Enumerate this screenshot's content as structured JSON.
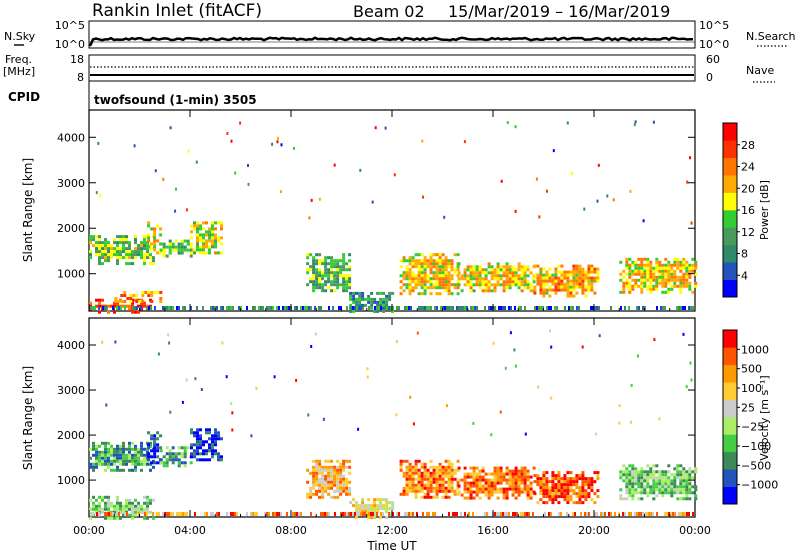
{
  "header": {
    "title": "Rankin Inlet (fitACF)",
    "beam": "Beam 02",
    "date_range": "15/Mar/2019 – 16/Mar/2019"
  },
  "aux_panels": {
    "nsky_label": "N.Sky",
    "nsky_ticks": [
      "10^5",
      "10^0"
    ],
    "nsearch_label": "N.Search",
    "nsearch_ticks": [
      "10^5",
      "10^0"
    ],
    "freq_label_1": "Freq.",
    "freq_label_2": "[MHz]",
    "freq_ticks": [
      "18",
      "8"
    ],
    "nave_label": "Nave",
    "nave_ticks": [
      "60",
      "0"
    ],
    "cpid_label": "CPID",
    "cpid_value": "twofsound (1-min) 3505"
  },
  "colors": {
    "power_scale": [
      "#0000ff",
      "#2255bb",
      "#2f8a6a",
      "#4a9a5e",
      "#33cc33",
      "#ffff00",
      "#ffaa00",
      "#ff7700",
      "#ff3300",
      "#ff0000"
    ],
    "velocity_scale": [
      "#ff0000",
      "#ff5500",
      "#ff9900",
      "#ffcc33",
      "#cccccc",
      "#aaee66",
      "#44cc44",
      "#3a8a5a",
      "#2255bb",
      "#0000ff"
    ]
  },
  "chart_data": [
    {
      "type": "heatmap",
      "panel": "power",
      "ylabel": "Slant Range [km]",
      "y_ticks": [
        1000,
        2000,
        3000,
        4000
      ],
      "ylim": [
        180,
        4600
      ],
      "x_ticks": [
        "00:00",
        "04:00",
        "08:00",
        "12:00",
        "16:00",
        "20:00",
        "00:00"
      ],
      "xlim_hours": [
        0,
        24
      ],
      "colorbar": {
        "label": "Power [dB]",
        "ticks": [
          "4",
          "8",
          "12",
          "16",
          "20",
          "24",
          "28"
        ],
        "range": [
          0,
          30
        ]
      },
      "regions": [
        {
          "t": [
            0.0,
            2.6
          ],
          "r": [
            1200,
            1850
          ],
          "level": 0.45
        },
        {
          "t": [
            2.3,
            2.8
          ],
          "r": [
            1450,
            2150
          ],
          "level": 0.55
        },
        {
          "t": [
            2.8,
            4.0
          ],
          "r": [
            1400,
            1750
          ],
          "level": 0.4
        },
        {
          "t": [
            4.0,
            5.3
          ],
          "r": [
            1450,
            2150
          ],
          "level": 0.55
        },
        {
          "t": [
            0.0,
            2.4
          ],
          "r": [
            180,
            450
          ],
          "level": 0.88
        },
        {
          "t": [
            1.0,
            2.8
          ],
          "r": [
            380,
            620
          ],
          "level": 0.68
        },
        {
          "t": [
            8.6,
            10.3
          ],
          "r": [
            600,
            1450
          ],
          "level": 0.4
        },
        {
          "t": [
            10.3,
            12.0
          ],
          "r": [
            200,
            600
          ],
          "level": 0.3
        },
        {
          "t": [
            12.3,
            14.6
          ],
          "r": [
            550,
            1450
          ],
          "level": 0.62
        },
        {
          "t": [
            14.6,
            17.6
          ],
          "r": [
            600,
            1250
          ],
          "level": 0.57
        },
        {
          "t": [
            17.6,
            20.2
          ],
          "r": [
            500,
            1200
          ],
          "level": 0.65
        },
        {
          "t": [
            21.0,
            24.0
          ],
          "r": [
            600,
            1350
          ],
          "level": 0.6
        }
      ]
    },
    {
      "type": "heatmap",
      "panel": "velocity",
      "ylabel": "Slant Range [km]",
      "y_ticks": [
        1000,
        2000,
        3000,
        4000
      ],
      "ylim": [
        180,
        4600
      ],
      "x_ticks": [
        "00:00",
        "04:00",
        "08:00",
        "12:00",
        "16:00",
        "20:00",
        "00:00"
      ],
      "xlim_hours": [
        0,
        24
      ],
      "xlabel": "Time UT",
      "colorbar": {
        "label": "Velocity [m s⁻¹]",
        "ticks": [
          "1000",
          "500",
          "100",
          "25",
          "−25",
          "−100",
          "−500",
          "−1000"
        ],
        "range": [
          -1200,
          1200
        ]
      },
      "regions": [
        {
          "t": [
            0.0,
            2.6
          ],
          "r": [
            1200,
            1850
          ],
          "level": 0.72
        },
        {
          "t": [
            2.3,
            2.8
          ],
          "r": [
            1400,
            2150
          ],
          "level": 0.88
        },
        {
          "t": [
            2.8,
            4.0
          ],
          "r": [
            1350,
            1750
          ],
          "level": 0.72
        },
        {
          "t": [
            4.0,
            5.3
          ],
          "r": [
            1450,
            2150
          ],
          "level": 0.9
        },
        {
          "t": [
            0.0,
            2.6
          ],
          "r": [
            180,
            650
          ],
          "level": 0.6
        },
        {
          "t": [
            8.6,
            10.3
          ],
          "r": [
            600,
            1450
          ],
          "level": 0.3
        },
        {
          "t": [
            10.3,
            12.0
          ],
          "r": [
            200,
            600
          ],
          "level": 0.4
        },
        {
          "t": [
            12.3,
            14.6
          ],
          "r": [
            600,
            1450
          ],
          "level": 0.22
        },
        {
          "t": [
            14.6,
            17.6
          ],
          "r": [
            600,
            1300
          ],
          "level": 0.2
        },
        {
          "t": [
            17.6,
            20.2
          ],
          "r": [
            500,
            1200
          ],
          "level": 0.15
        },
        {
          "t": [
            21.0,
            24.0
          ],
          "r": [
            600,
            1350
          ],
          "level": 0.62
        }
      ]
    }
  ]
}
